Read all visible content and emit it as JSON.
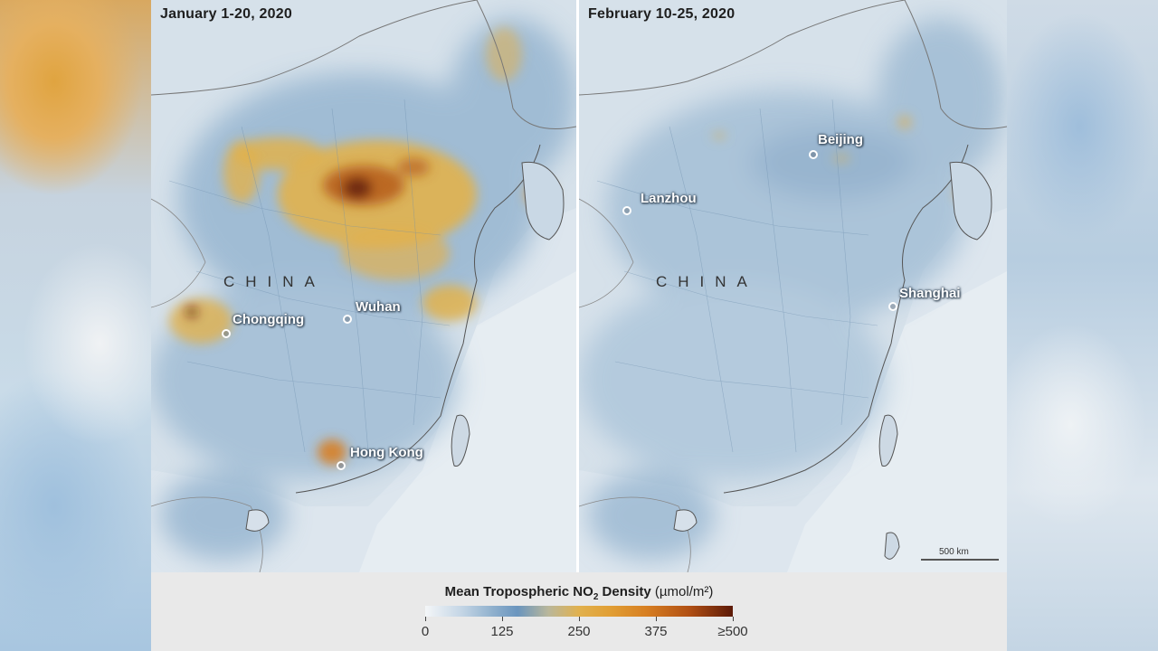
{
  "panels": [
    {
      "title": "January 1-20, 2020",
      "country_label": "CHINA",
      "cities": [
        "Chongqing",
        "Wuhan",
        "Hong Kong"
      ]
    },
    {
      "title": "February 10-25, 2020",
      "country_label": "CHINA",
      "cities": [
        "Beijing",
        "Lanzhou",
        "Shanghai"
      ]
    }
  ],
  "scale_bar": "500 km",
  "legend": {
    "title_main": "Mean Tropospheric NO",
    "title_sub": "2",
    "title_rest": " Density",
    "units": "(µmol/m²)",
    "ticks": [
      "0",
      "125",
      "250",
      "375",
      "≥500"
    ],
    "colors": [
      "#f4f6f8",
      "#8fb0cd",
      "#e1b14e",
      "#d77f22",
      "#5c1a08"
    ]
  }
}
